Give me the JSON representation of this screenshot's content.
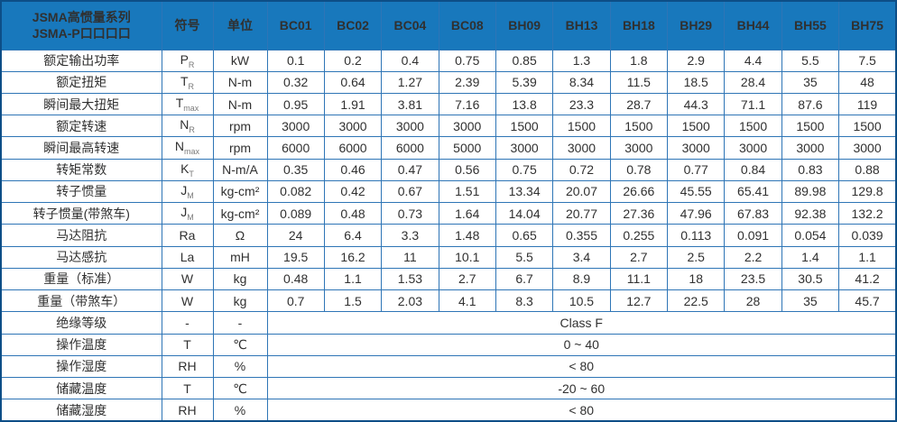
{
  "table": {
    "header": {
      "title_line1": "JSMA高惯量系列",
      "title_line2": "JSMA-P口口口口",
      "symbol_col": "符号",
      "unit_col": "单位",
      "models": [
        "BC01",
        "BC02",
        "BC04",
        "BC08",
        "BH09",
        "BH13",
        "BH18",
        "BH29",
        "BH44",
        "BH55",
        "BH75"
      ]
    },
    "rows": [
      {
        "label": "额定输出功率",
        "symbol": "P",
        "sub": "R",
        "unit": "kW",
        "values": [
          "0.1",
          "0.2",
          "0.4",
          "0.75",
          "0.85",
          "1.3",
          "1.8",
          "2.9",
          "4.4",
          "5.5",
          "7.5"
        ]
      },
      {
        "label": "额定扭矩",
        "symbol": "T",
        "sub": "R",
        "unit": "N-m",
        "values": [
          "0.32",
          "0.64",
          "1.27",
          "2.39",
          "5.39",
          "8.34",
          "11.5",
          "18.5",
          "28.4",
          "35",
          "48"
        ]
      },
      {
        "label": "瞬间最大扭矩",
        "symbol": "T",
        "sub": "max",
        "unit": "N-m",
        "values": [
          "0.95",
          "1.91",
          "3.81",
          "7.16",
          "13.8",
          "23.3",
          "28.7",
          "44.3",
          "71.1",
          "87.6",
          "119"
        ]
      },
      {
        "label": "额定转速",
        "symbol": "N",
        "sub": "R",
        "unit": "rpm",
        "values": [
          "3000",
          "3000",
          "3000",
          "3000",
          "1500",
          "1500",
          "1500",
          "1500",
          "1500",
          "1500",
          "1500"
        ]
      },
      {
        "label": "瞬间最高转速",
        "symbol": "N",
        "sub": "max",
        "unit": "rpm",
        "values": [
          "6000",
          "6000",
          "6000",
          "5000",
          "3000",
          "3000",
          "3000",
          "3000",
          "3000",
          "3000",
          "3000"
        ]
      },
      {
        "label": "转矩常数",
        "symbol": "K",
        "sub": "T",
        "unit": "N-m/A",
        "values": [
          "0.35",
          "0.46",
          "0.47",
          "0.56",
          "0.75",
          "0.72",
          "0.78",
          "0.77",
          "0.84",
          "0.83",
          "0.88"
        ]
      },
      {
        "label": "转子惯量",
        "symbol": "J",
        "sub": "M",
        "unit": "kg-cm²",
        "values": [
          "0.082",
          "0.42",
          "0.67",
          "1.51",
          "13.34",
          "20.07",
          "26.66",
          "45.55",
          "65.41",
          "89.98",
          "129.8"
        ]
      },
      {
        "label": "转子惯量(带煞车)",
        "symbol": "J",
        "sub": "M",
        "unit": "kg-cm²",
        "values": [
          "0.089",
          "0.48",
          "0.73",
          "1.64",
          "14.04",
          "20.77",
          "27.36",
          "47.96",
          "67.83",
          "92.38",
          "132.2"
        ]
      },
      {
        "label": "马达阻抗",
        "symbol": "Ra",
        "sub": "",
        "unit": "Ω",
        "values": [
          "24",
          "6.4",
          "3.3",
          "1.48",
          "0.65",
          "0.355",
          "0.255",
          "0.113",
          "0.091",
          "0.054",
          "0.039"
        ]
      },
      {
        "label": "马达感抗",
        "symbol": "La",
        "sub": "",
        "unit": "mH",
        "values": [
          "19.5",
          "16.2",
          "11",
          "10.1",
          "5.5",
          "3.4",
          "2.7",
          "2.5",
          "2.2",
          "1.4",
          "1.1"
        ]
      },
      {
        "label": "重量（标准）",
        "symbol": "W",
        "sub": "",
        "unit": "kg",
        "values": [
          "0.48",
          "1.1",
          "1.53",
          "2.7",
          "6.7",
          "8.9",
          "11.1",
          "18",
          "23.5",
          "30.5",
          "41.2"
        ]
      },
      {
        "label": "重量（带煞车）",
        "symbol": "W",
        "sub": "",
        "unit": "kg",
        "values": [
          "0.7",
          "1.5",
          "2.03",
          "4.1",
          "8.3",
          "10.5",
          "12.7",
          "22.5",
          "28",
          "35",
          "45.7"
        ]
      },
      {
        "label": "绝缘等级",
        "symbol": "-",
        "sub": "",
        "unit": "-",
        "merged": "Class F"
      },
      {
        "label": "操作温度",
        "symbol": "T",
        "sub": "",
        "unit": "℃",
        "merged": "0 ~ 40"
      },
      {
        "label": "操作湿度",
        "symbol": "RH",
        "sub": "",
        "unit": "%",
        "merged": "< 80"
      },
      {
        "label": "储藏温度",
        "symbol": "T",
        "sub": "",
        "unit": "℃",
        "merged": "-20 ~ 60"
      },
      {
        "label": "储藏湿度",
        "symbol": "RH",
        "sub": "",
        "unit": "%",
        "merged": "< 80"
      }
    ],
    "colors": {
      "header_bg": "#1878bc",
      "outer_border": "#0d4e87",
      "grid_border": "#2e75b6",
      "header_text": "#ffffff",
      "body_text": "#303030"
    }
  }
}
